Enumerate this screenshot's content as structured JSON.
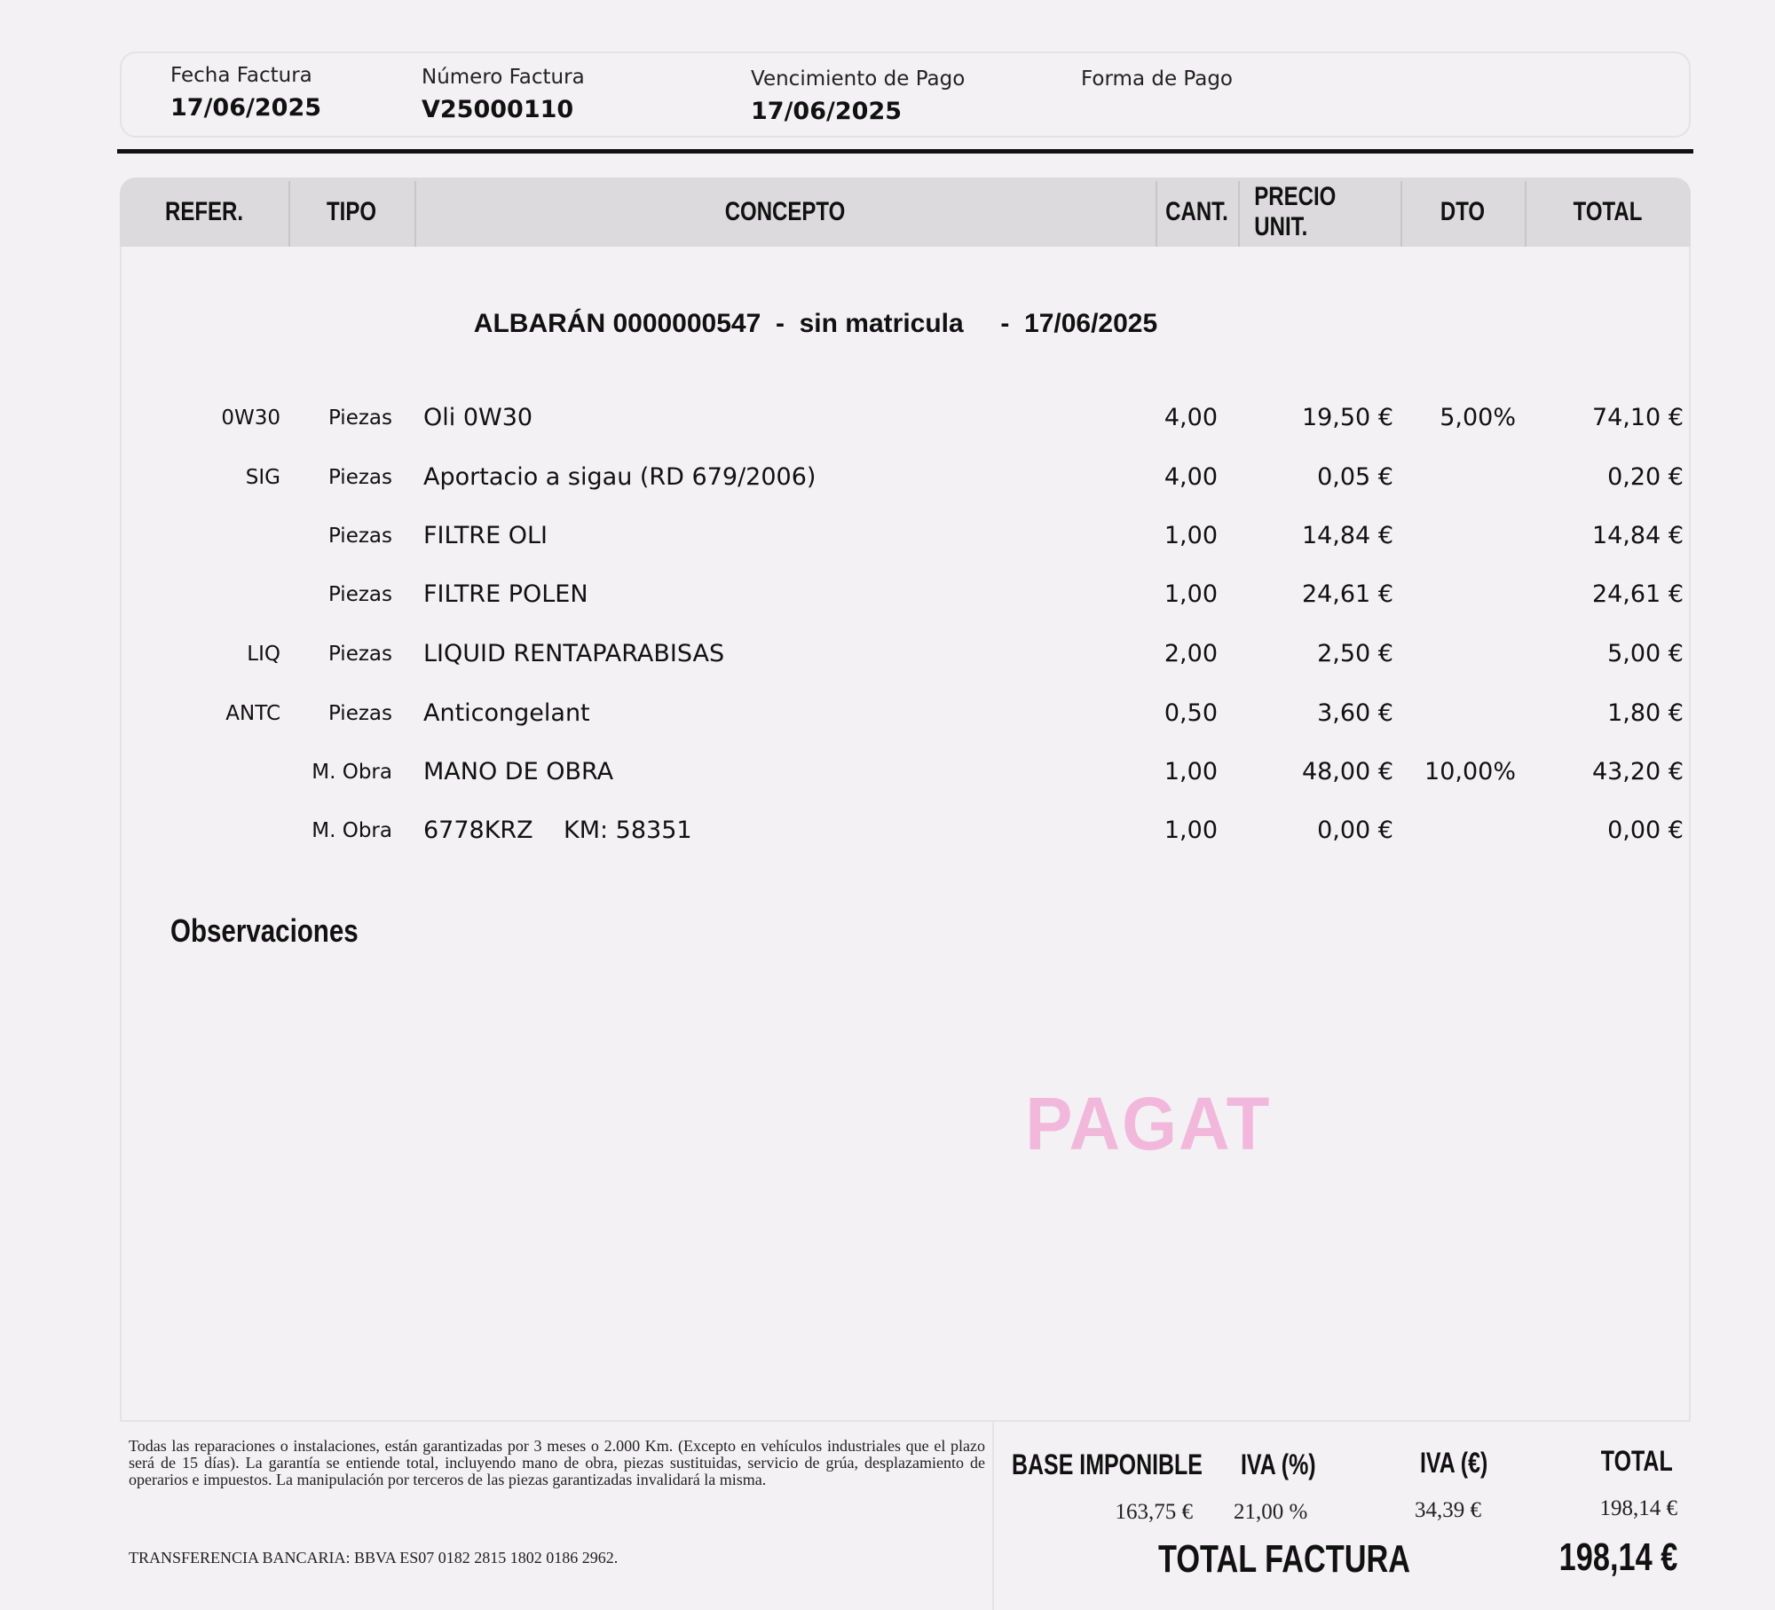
{
  "header": {
    "fecha_label": "Fecha Factura",
    "fecha_value": "17/06/2025",
    "numero_label": "Número Factura",
    "numero_value": "V25000110",
    "vencimiento_label": "Vencimiento de Pago",
    "vencimiento_value": "17/06/2025",
    "forma_label": "Forma de Pago",
    "forma_value": ""
  },
  "table": {
    "columns": [
      "REFER.",
      "TIPO",
      "CONCEPTO",
      "CANT.",
      "PRECIO UNIT.",
      "DTO",
      "TOTAL"
    ],
    "albaran": "ALBARÁN 0000000547  -  sin matricula     -  17/06/2025",
    "rows": [
      {
        "ref": "0W30",
        "tipo": "Piezas",
        "concepto": "Oli 0W30",
        "cant": "4,00",
        "precio": "19,50 €",
        "dto": "5,00%",
        "total": "74,10 €"
      },
      {
        "ref": "SIG",
        "tipo": "Piezas",
        "concepto": "Aportacio a sigau (RD 679/2006)",
        "cant": "4,00",
        "precio": "0,05 €",
        "dto": "",
        "total": "0,20 €"
      },
      {
        "ref": "",
        "tipo": "Piezas",
        "concepto": "FILTRE OLI",
        "cant": "1,00",
        "precio": "14,84 €",
        "dto": "",
        "total": "14,84 €"
      },
      {
        "ref": "",
        "tipo": "Piezas",
        "concepto": "FILTRE POLEN",
        "cant": "1,00",
        "precio": "24,61 €",
        "dto": "",
        "total": "24,61 €"
      },
      {
        "ref": "LIQ",
        "tipo": "Piezas",
        "concepto": "LIQUID RENTAPARABISAS",
        "cant": "2,00",
        "precio": "2,50 €",
        "dto": "",
        "total": "5,00 €"
      },
      {
        "ref": "ANTC",
        "tipo": "Piezas",
        "concepto": "Anticongelant",
        "cant": "0,50",
        "precio": "3,60 €",
        "dto": "",
        "total": "1,80 €"
      },
      {
        "ref": "",
        "tipo": "M. Obra",
        "concepto": "MANO DE OBRA",
        "cant": "1,00",
        "precio": "48,00 €",
        "dto": "10,00%",
        "total": "43,20 €"
      },
      {
        "ref": "",
        "tipo": "M. Obra",
        "concepto": "6778KRZ    KM: 58351",
        "cant": "1,00",
        "precio": "0,00 €",
        "dto": "",
        "total": "0,00 €"
      }
    ]
  },
  "observaciones_label": "Observaciones",
  "stamp": {
    "text": "PAGAT",
    "color": "#f2b8dc"
  },
  "footer": {
    "warranty": "Todas las reparaciones o instalaciones, están garantizadas por 3 meses o 2.000 Km. (Excepto en vehículos industriales que el plazo será de 15 días). La garantía se entiende total, incluyendo mano de obra, piezas sustituidas, servicio de grúa, desplazamiento de operarios e impuestos. La manipulación por terceros de las piezas garantizadas invalidará la misma.",
    "bank": "TRANSFERENCIA BANCARIA: BBVA ES07 0182 2815 1802 0186 2962."
  },
  "summary": {
    "base_label": "BASE IMPONIBLE",
    "base_value": "163,75 €",
    "iva_pct_label": "IVA (%)",
    "iva_pct_value": "21,00 %",
    "iva_eur_label": "IVA (€)",
    "iva_eur_value": "34,39 €",
    "total_label": "TOTAL",
    "total_value": "198,14 €",
    "total_factura_label": "TOTAL FACTURA",
    "total_factura_value": "198,14 €"
  }
}
